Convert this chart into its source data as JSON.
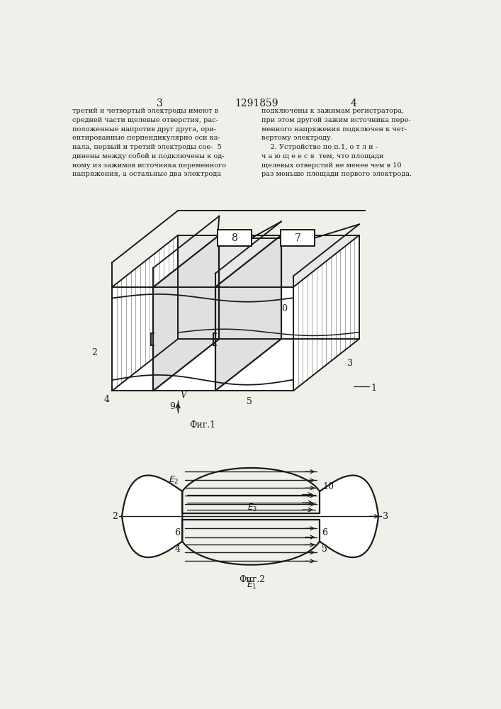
{
  "bg_color": "#f0f0eb",
  "line_color": "#1a1a1a",
  "text_color": "#1a1a1a",
  "page_num_left": "3",
  "page_num_center": "1291859",
  "page_num_right": "4",
  "fig1_label": "Фиг.1",
  "fig2_label": "Фиг.2",
  "left_lines": [
    "третий и четвертый электроды имеют в",
    "средней части щелевые отверстия, рас-",
    "положенные напротив друг друга, ори-",
    "ентированные перпендикулярно оси ка-",
    "нала, первый и третий электроды сое-  5",
    "динены между собой и подключены к од-",
    "ному из зажимов источника переменного",
    "напряжения, а остальные два электрода"
  ],
  "right_lines": [
    "подключены к зажимам регистратора,",
    "при этом другой зажим источника пере-",
    "менного напряжения подключен к чет-",
    "вертому электроду.",
    "    2. Устройство по п.1, о т л и -",
    "ч а ю щ е е с я  тем, что площади",
    "щелевых отверстий не менее чем в 10",
    "раз меньше площади первого электрода."
  ]
}
